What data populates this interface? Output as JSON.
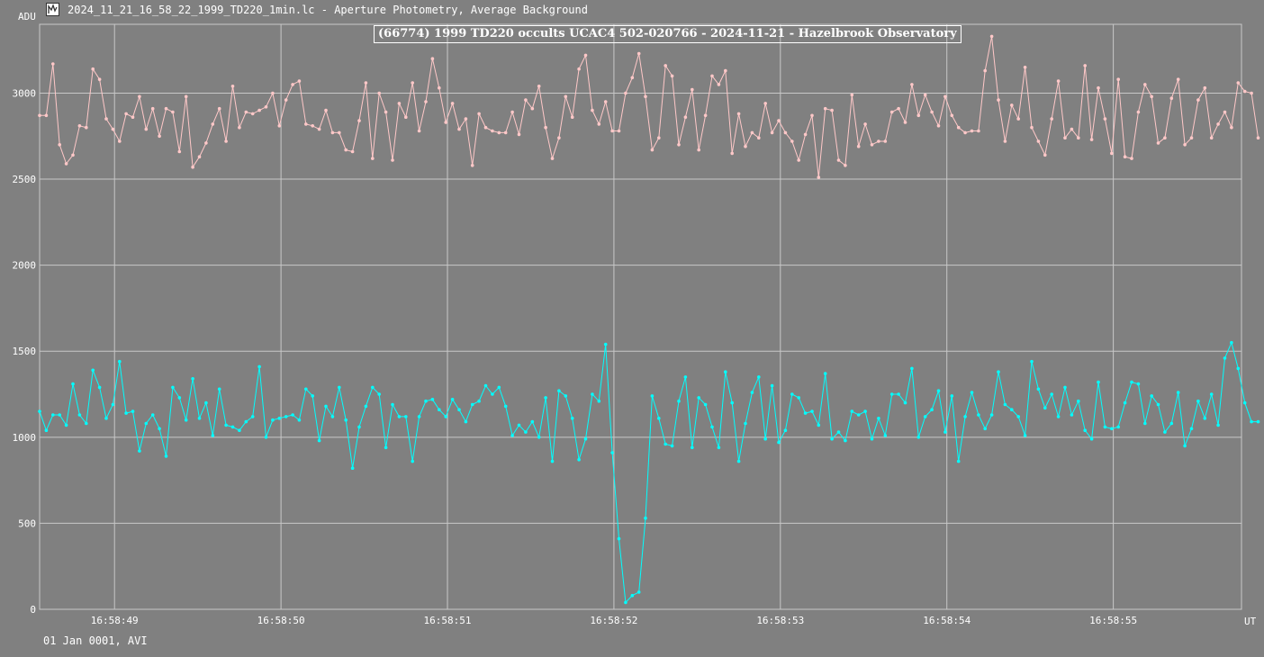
{
  "window": {
    "title": "2024_11_21_16_58_22_1999_TD220_1min.lc - Aperture Photometry, Average Background"
  },
  "footer": {
    "text": "01 Jan 0001, AVI"
  },
  "colors": {
    "background": "#808080",
    "grid": "#c8c8c8",
    "target": "#00ffff",
    "comparison": "#ffc8c8",
    "text": "#ffffff"
  },
  "icons": {
    "app": "light-curve-app-icon"
  },
  "chart_data": {
    "type": "line",
    "title": "(66774) 1999 TD220 occults UCAC4 502-020766 - 2024-11-21 - Hazelbrook Observatory",
    "ylabel": "ADU",
    "xlabel": "UT",
    "ylim": [
      0,
      3400
    ],
    "yticks": [
      0,
      500,
      1000,
      1500,
      2000,
      2500,
      3000
    ],
    "xlim": [
      48.55,
      55.77
    ],
    "xticks": [
      "16:58:49",
      "16:58:50",
      "16:58:51",
      "16:58:52",
      "16:58:53",
      "16:58:54",
      "16:58:55"
    ],
    "xtick_values": [
      49,
      50,
      51,
      52,
      53,
      54,
      55
    ],
    "grid": true,
    "x_start": 48.55,
    "x_step": 0.04,
    "series": [
      {
        "color": "#ffc8c8",
        "values": [
          2870,
          2870,
          3170,
          2700,
          2590,
          2640,
          2810,
          2800,
          3140,
          3080,
          2850,
          2790,
          2720,
          2880,
          2860,
          2980,
          2790,
          2910,
          2750,
          2910,
          2890,
          2660,
          2980,
          2570,
          2630,
          2710,
          2820,
          2910,
          2720,
          3040,
          2800,
          2890,
          2880,
          2900,
          2920,
          3000,
          2810,
          2960,
          3050,
          3070,
          2820,
          2810,
          2790,
          2900,
          2770,
          2770,
          2670,
          2660,
          2840,
          3060,
          2620,
          3000,
          2890,
          2610,
          2940,
          2860,
          3060,
          2780,
          2950,
          3200,
          3030,
          2830,
          2940,
          2790,
          2850,
          2580,
          2880,
          2800,
          2780,
          2770,
          2770,
          2890,
          2760,
          2960,
          2910,
          3040,
          2800,
          2620,
          2740,
          2980,
          2860,
          3140,
          3220,
          2900,
          2820,
          2950,
          2780,
          2780,
          3000,
          3090,
          3230,
          2980,
          2670,
          2740,
          3160,
          3100,
          2700,
          2860,
          3020,
          2670,
          2870,
          3100,
          3050,
          3130,
          2650,
          2880,
          2690,
          2770,
          2740,
          2940,
          2770,
          2840,
          2770,
          2720,
          2610,
          2760,
          2870,
          2510,
          2910,
          2900,
          2610,
          2580,
          2990,
          2690,
          2820,
          2700,
          2720,
          2720,
          2890,
          2910,
          2830,
          3050,
          2870,
          2990,
          2890,
          2810,
          2980,
          2870,
          2800,
          2770,
          2780,
          2780,
          3130,
          3330,
          2960,
          2720,
          2930,
          2850,
          3150,
          2800,
          2720,
          2640,
          2850,
          3070,
          2740,
          2790,
          2740,
          3160,
          2730,
          3030,
          2850,
          2650,
          3080,
          2630,
          2620,
          2890,
          3050,
          2980,
          2710,
          2740,
          2970,
          3080,
          2700,
          2740,
          2960,
          3030,
          2740,
          2820,
          2890,
          2800,
          3060,
          3010,
          3000,
          2740
        ]
      },
      {
        "color": "#00ffff",
        "values": [
          1150,
          1040,
          1130,
          1130,
          1070,
          1310,
          1130,
          1080,
          1390,
          1290,
          1110,
          1190,
          1440,
          1140,
          1150,
          920,
          1080,
          1130,
          1050,
          890,
          1290,
          1230,
          1100,
          1340,
          1110,
          1200,
          1010,
          1280,
          1070,
          1060,
          1040,
          1090,
          1120,
          1410,
          1000,
          1100,
          1110,
          1120,
          1130,
          1100,
          1280,
          1240,
          980,
          1180,
          1120,
          1290,
          1100,
          820,
          1060,
          1180,
          1290,
          1250,
          940,
          1190,
          1120,
          1120,
          860,
          1120,
          1210,
          1220,
          1160,
          1120,
          1220,
          1160,
          1090,
          1190,
          1210,
          1300,
          1250,
          1290,
          1180,
          1010,
          1070,
          1030,
          1090,
          1000,
          1230,
          860,
          1270,
          1240,
          1110,
          870,
          990,
          1250,
          1210,
          1540,
          910,
          410,
          40,
          80,
          100,
          530,
          1240,
          1110,
          960,
          950,
          1210,
          1350,
          940,
          1230,
          1190,
          1060,
          940,
          1380,
          1200,
          860,
          1080,
          1260,
          1350,
          990,
          1300,
          970,
          1040,
          1250,
          1230,
          1140,
          1150,
          1070,
          1370,
          990,
          1030,
          980,
          1150,
          1130,
          1150,
          990,
          1110,
          1010,
          1250,
          1250,
          1200,
          1400,
          1000,
          1120,
          1160,
          1270,
          1030,
          1240,
          860,
          1120,
          1260,
          1130,
          1050,
          1130,
          1380,
          1190,
          1160,
          1120,
          1010,
          1440,
          1280,
          1170,
          1250,
          1120,
          1290,
          1130,
          1210,
          1040,
          990,
          1320,
          1060,
          1050,
          1060,
          1200,
          1320,
          1310,
          1080,
          1240,
          1190,
          1030,
          1080,
          1260,
          950,
          1050,
          1210,
          1110,
          1250,
          1070,
          1460,
          1550,
          1400,
          1200,
          1090,
          1090
        ]
      }
    ]
  }
}
